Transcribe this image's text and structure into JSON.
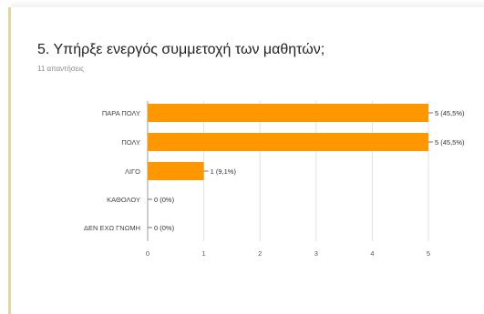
{
  "title": "5. Υπήρξε ενεργός συμμετοχή των μαθητών;",
  "subtitle": "11 απαντήσεις",
  "chart_data": {
    "type": "bar",
    "orientation": "horizontal",
    "categories": [
      "ΠΑΡΑ ΠΟΛΥ",
      "ΠΟΛΥ",
      "ΛΙΓΟ",
      "ΚΑΘΟΛΟΥ",
      "ΔΕΝ ΕΧΩ ΓΝΩΜΗ"
    ],
    "values": [
      5,
      5,
      1,
      0,
      0
    ],
    "data_labels": [
      "5 (45,5%)",
      "5 (45,5%)",
      "1 (9,1%)",
      "0 (0%)",
      "0 (0%)"
    ],
    "xticks": [
      "0",
      "1",
      "2",
      "3",
      "4",
      "5"
    ],
    "xlim": [
      0,
      5
    ],
    "grid": true,
    "bar_color": "#ff9800"
  }
}
